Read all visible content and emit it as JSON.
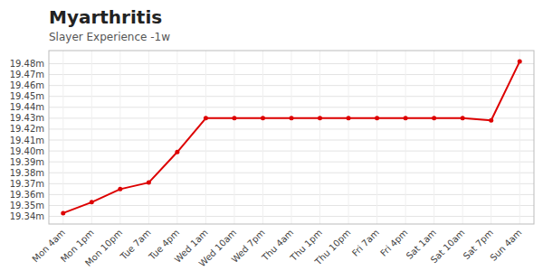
{
  "chart_data": {
    "type": "line",
    "title": "Myarthritis",
    "subtitle": "Slayer Experience -1w",
    "categories": [
      "Mon 4am",
      "Mon 1pm",
      "Mon 10pm",
      "Tue 7am",
      "Tue 4pm",
      "Wed 1am",
      "Wed 10am",
      "Wed 7pm",
      "Thu 4am",
      "Thu 1pm",
      "Thu 10pm",
      "Fri 7am",
      "Fri 4pm",
      "Sat 1am",
      "Sat 10am",
      "Sat 7pm",
      "Sun 4am"
    ],
    "values": [
      19.343,
      19.353,
      19.365,
      19.371,
      19.399,
      19.43,
      19.43,
      19.43,
      19.43,
      19.43,
      19.43,
      19.43,
      19.43,
      19.43,
      19.43,
      19.428,
      19.482
    ],
    "color": "#dd0000",
    "marker": "circle",
    "ylim": [
      19.333,
      19.492
    ],
    "yticks": [
      {
        "value": 19.34,
        "label": "19.34m"
      },
      {
        "value": 19.35,
        "label": "19.35m"
      },
      {
        "value": 19.36,
        "label": "19.36m"
      },
      {
        "value": 19.37,
        "label": "19.37m"
      },
      {
        "value": 19.38,
        "label": "19.38m"
      },
      {
        "value": 19.39,
        "label": "19.39m"
      },
      {
        "value": 19.4,
        "label": "19.40m"
      },
      {
        "value": 19.41,
        "label": "19.41m"
      },
      {
        "value": 19.42,
        "label": "19.42m"
      },
      {
        "value": 19.43,
        "label": "19.43m"
      },
      {
        "value": 19.44,
        "label": "19.44m"
      },
      {
        "value": 19.45,
        "label": "19.45m"
      },
      {
        "value": 19.46,
        "label": "19.46m"
      },
      {
        "value": 19.47,
        "label": "19.47m"
      },
      {
        "value": 19.48,
        "label": "19.48m"
      }
    ],
    "grid": true
  }
}
